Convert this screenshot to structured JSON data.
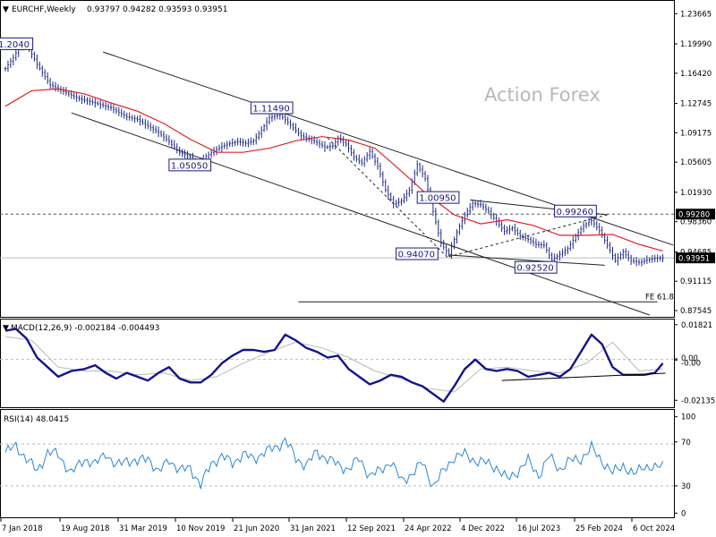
{
  "header": {
    "symbol": "EURCHF,Weekly",
    "ohlc": "0.93797 0.94282 0.93593 0.93951"
  },
  "watermark": "Action Forex",
  "colors": {
    "price": "#1f2a86",
    "ma": "#e0202a",
    "trend": "#000000",
    "macd": "#14148c",
    "signal": "#b8b8b8",
    "rsi": "#2b86d6",
    "grid": "#cccccc",
    "highlight_bg": "#000000"
  },
  "chart_data": [
    {
      "type": "line",
      "title": "EURCHF,Weekly",
      "ylim": [
        0.87,
        1.25
      ],
      "y_ticks": [
        "1.23665",
        "1.19990",
        "1.16420",
        "1.12745",
        "1.09175",
        "1.05605",
        "1.01930",
        "0.98360",
        "0.94685",
        "0.91115",
        "0.87545"
      ],
      "x_ticks": [
        "7 Jan 2018",
        "19 Aug 2018",
        "31 Mar 2019",
        "10 Nov 2019",
        "21 Jun 2020",
        "31 Jan 2021",
        "12 Sep 2021",
        "24 Apr 2022",
        "4 Dec 2022",
        "16 Jul 2023",
        "25 Feb 2024",
        "6 Oct 2024"
      ],
      "series": [
        {
          "x": [
            0.0,
            3.0,
            5.0,
            8.0,
            12.0,
            17.0,
            22.0,
            28.0,
            34.0,
            40.0,
            46.0,
            50.0,
            54.0,
            58.0,
            62.0,
            66.0,
            70.0,
            72.5,
            76.0,
            80.0,
            84.0,
            88.0,
            91.0,
            94.0,
            97.0,
            100.0,
            104.0,
            108.0,
            112.0,
            115.0,
            118.0,
            121.0,
            124.0,
            126.0,
            129.0,
            132.0,
            135.0,
            138.0,
            141.0,
            144.0,
            147.0,
            150.0,
            153.0,
            156.0,
            159.0,
            162.0,
            165.0,
            168.0,
            171.0,
            174.0,
            177.0,
            180.0,
            183.0,
            186.0,
            189.0,
            192.0,
            195.0,
            198.0,
            201.0,
            204.0,
            207.0,
            210.0,
            213.0,
            216.0,
            219.0,
            222.0,
            225.0,
            228.0,
            231.0,
            234.0,
            237.0,
            240.0,
            243.0,
            246.0,
            249.0
          ],
          "values": [
            1.17,
            1.183,
            1.195,
            1.2,
            1.175,
            1.15,
            1.142,
            1.133,
            1.128,
            1.122,
            1.111,
            1.108,
            1.1,
            1.092,
            1.081,
            1.068,
            1.062,
            1.051,
            1.063,
            1.072,
            1.078,
            1.081,
            1.079,
            1.082,
            1.095,
            1.11,
            1.114,
            1.101,
            1.088,
            1.084,
            1.08,
            1.074,
            1.076,
            1.085,
            1.078,
            1.062,
            1.055,
            1.069,
            1.051,
            1.022,
            1.005,
            1.009,
            1.022,
            1.053,
            1.036,
            0.996,
            0.957,
            0.944,
            0.971,
            0.992,
            1.006,
            1.004,
            0.996,
            0.984,
            0.972,
            0.976,
            0.966,
            0.962,
            0.956,
            0.955,
            0.937,
            0.944,
            0.951,
            0.966,
            0.979,
            0.985,
            0.973,
            0.955,
            0.936,
            0.947,
            0.936,
            0.934,
            0.937,
            0.939,
            0.9395
          ]
        },
        {
          "name": "",
          "x": [
            0,
            10,
            20,
            30,
            40,
            50,
            60,
            70,
            80,
            90,
            100,
            110,
            120,
            130,
            140,
            150,
            160,
            170,
            180,
            190,
            200,
            210,
            220,
            230,
            240,
            249
          ],
          "values": [
            1.124,
            1.143,
            1.145,
            1.139,
            1.128,
            1.118,
            1.103,
            1.084,
            1.068,
            1.068,
            1.073,
            1.082,
            1.087,
            1.083,
            1.073,
            1.045,
            1.016,
            0.992,
            0.981,
            0.986,
            0.979,
            0.967,
            0.967,
            0.968,
            0.956,
            0.948
          ]
        }
      ],
      "levels": {
        "horizontal_dashed": 0.9928,
        "current_price": 0.93951
      },
      "labels": [
        "1.2040",
        "1.11490",
        "1.05050",
        "1.00950",
        "0.99260",
        "0.94070",
        "0.92520"
      ],
      "annotation": "FE 61.8",
      "price_markers": [
        "0.99280",
        "0.93951"
      ]
    },
    {
      "type": "line",
      "title": "MACD(12,26,9) -0.002184 -0.004493",
      "ylim": [
        -0.0245,
        0.0195
      ],
      "y_ticks": [
        "0.01821",
        "0.00",
        "-0.00",
        "-0.02135"
      ],
      "series": [
        {
          "x": [
            0,
            4,
            8,
            12,
            16,
            20,
            25,
            30,
            34,
            38,
            42,
            46,
            50,
            54,
            58,
            62,
            66,
            70,
            74,
            78,
            82,
            86,
            90,
            94,
            98,
            102,
            106,
            110,
            114,
            118,
            122,
            126,
            130,
            134,
            138,
            142,
            146,
            150,
            154,
            158,
            162,
            166,
            170,
            174,
            178,
            182,
            186,
            190,
            194,
            198,
            202,
            206,
            210,
            214,
            218,
            222,
            226,
            230,
            234,
            238,
            242,
            246,
            249
          ],
          "values": [
            0.015,
            0.016,
            0.011,
            0.001,
            -0.004,
            -0.009,
            -0.006,
            -0.005,
            -0.003,
            -0.007,
            -0.01,
            -0.007,
            -0.009,
            -0.011,
            -0.007,
            -0.004,
            -0.01,
            -0.012,
            -0.012,
            -0.008,
            -0.002,
            0.002,
            0.005,
            0.005,
            0.004,
            0.005,
            0.013,
            0.01,
            0.006,
            0.004,
            0.001,
            0.002,
            -0.005,
            -0.009,
            -0.013,
            -0.011,
            -0.008,
            -0.009,
            -0.012,
            -0.014,
            -0.018,
            -0.022,
            -0.014,
            -0.005,
            0.0,
            -0.005,
            -0.006,
            -0.005,
            -0.006,
            -0.009,
            -0.008,
            -0.007,
            -0.009,
            -0.005,
            0.004,
            0.013,
            0.008,
            -0.004,
            -0.008,
            -0.008,
            -0.008,
            -0.007,
            -0.002
          ]
        },
        {
          "x": [
            0,
            10,
            20,
            30,
            40,
            50,
            60,
            70,
            80,
            90,
            100,
            110,
            120,
            130,
            140,
            150,
            160,
            170,
            180,
            190,
            200,
            210,
            220,
            230,
            240,
            249
          ],
          "values": [
            0.012,
            0.01,
            -0.004,
            -0.006,
            -0.006,
            -0.008,
            -0.007,
            -0.011,
            -0.009,
            -0.002,
            0.004,
            0.009,
            0.006,
            0.001,
            -0.006,
            -0.01,
            -0.015,
            -0.017,
            -0.005,
            -0.004,
            -0.006,
            -0.007,
            -0.002,
            0.009,
            -0.006,
            -0.005
          ]
        }
      ]
    },
    {
      "type": "line",
      "title": "RSI(14) 48.0415",
      "ylim": [
        0,
        100
      ],
      "y_ticks": [
        "100",
        "70",
        "30",
        "0"
      ],
      "series": [
        {
          "x": [
            0,
            4,
            8,
            12,
            16,
            20,
            25,
            30,
            34,
            38,
            42,
            46,
            50,
            54,
            58,
            62,
            66,
            70,
            74,
            78,
            82,
            86,
            90,
            94,
            98,
            102,
            106,
            110,
            114,
            118,
            122,
            126,
            130,
            134,
            138,
            142,
            146,
            150,
            154,
            158,
            162,
            166,
            170,
            174,
            178,
            182,
            186,
            190,
            194,
            198,
            202,
            206,
            210,
            214,
            218,
            222,
            226,
            230,
            234,
            238,
            242,
            246,
            249
          ],
          "values": [
            62,
            68,
            56,
            44,
            62,
            60,
            42,
            56,
            50,
            62,
            48,
            56,
            52,
            58,
            42,
            56,
            44,
            48,
            30,
            52,
            58,
            52,
            60,
            56,
            62,
            66,
            74,
            56,
            50,
            62,
            56,
            50,
            46,
            56,
            40,
            44,
            54,
            34,
            42,
            52,
            30,
            44,
            58,
            60,
            54,
            52,
            48,
            36,
            44,
            54,
            40,
            58,
            46,
            54,
            56,
            66,
            54,
            42,
            50,
            40,
            50,
            46,
            50
          ]
        }
      ]
    }
  ]
}
